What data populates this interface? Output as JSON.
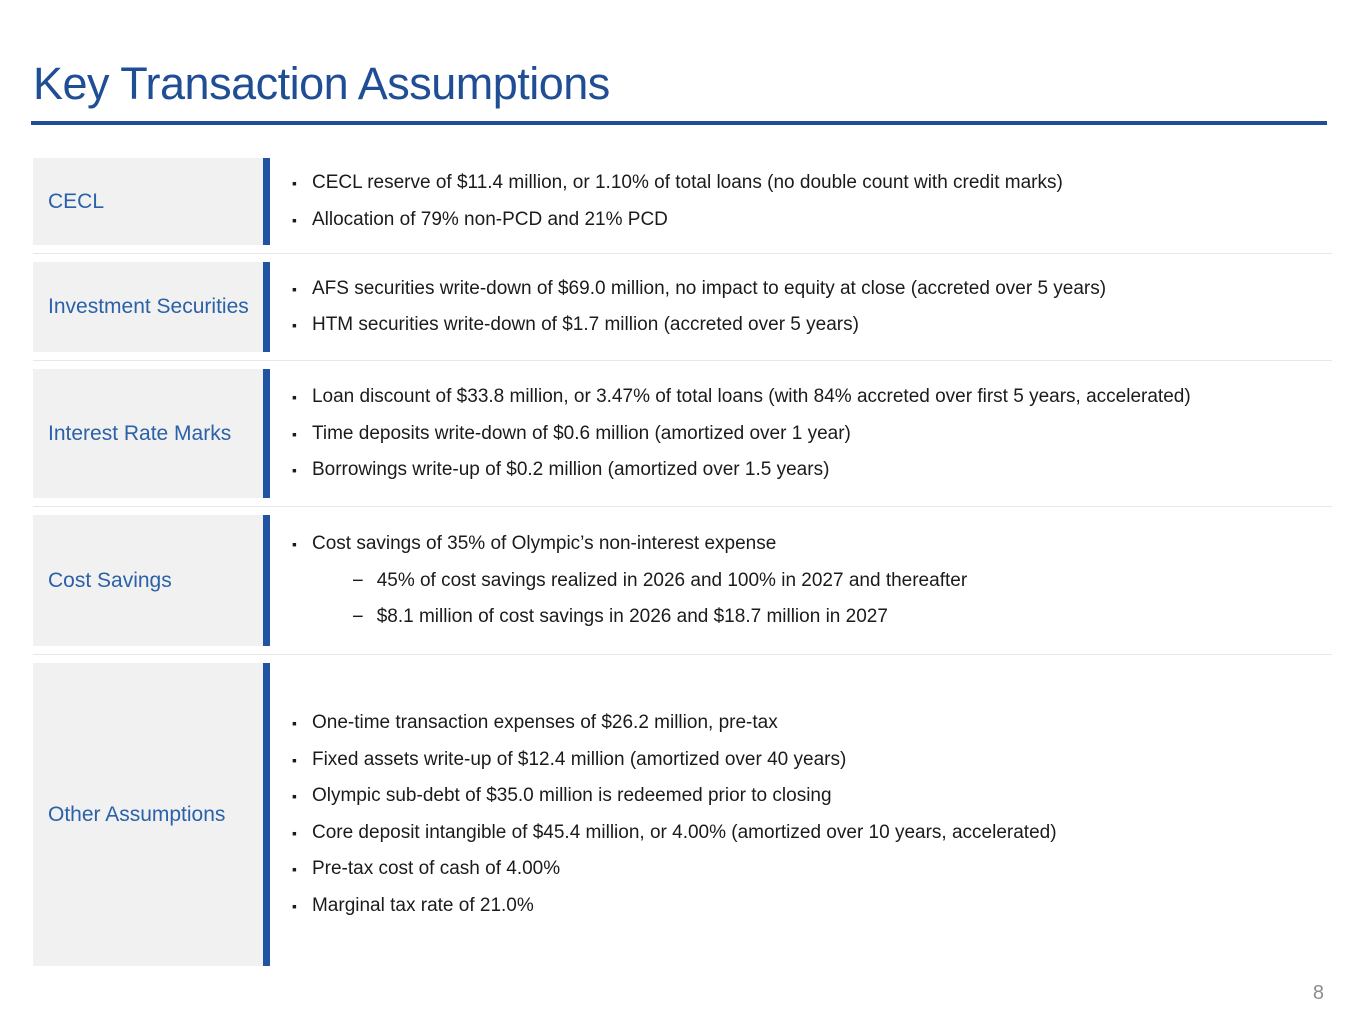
{
  "slide": {
    "title": "Key Transaction Assumptions",
    "page_number": "8",
    "icons": {
      "bullet": "▪",
      "dash": "−"
    },
    "colors": {
      "title_blue": "#1F4E94",
      "label_blue": "#2A61A8",
      "bar_blue": "#2054A3",
      "cell_gray": "#F1F1F1",
      "separator_gray": "#E8E8E8",
      "body_text": "#1B1B1B",
      "page_number_gray": "#8C8C8C"
    },
    "rows": [
      {
        "label": "CECL",
        "items": [
          {
            "level": 1,
            "text": "CECL reserve of $11.4 million, or 1.10% of total loans (no double count with credit marks)"
          },
          {
            "level": 1,
            "text": "Allocation of 79% non-PCD and 21% PCD"
          }
        ]
      },
      {
        "label": "Investment Securities",
        "items": [
          {
            "level": 1,
            "text": "AFS securities write-down of $69.0 million, no impact to equity at close (accreted over 5 years)"
          },
          {
            "level": 1,
            "text": "HTM securities write-down of $1.7 million (accreted over 5 years)"
          }
        ]
      },
      {
        "label": "Interest Rate Marks",
        "items": [
          {
            "level": 1,
            "text": "Loan discount of $33.8 million, or 3.47% of total loans (with 84% accreted over first 5 years, accelerated)"
          },
          {
            "level": 1,
            "text": "Time deposits write-down of $0.6 million (amortized over 1 year)"
          },
          {
            "level": 1,
            "text": "Borrowings write-up of $0.2 million (amortized over 1.5 years)"
          }
        ]
      },
      {
        "label": "Cost Savings",
        "items": [
          {
            "level": 1,
            "text": "Cost savings of 35% of Olympic’s non-interest expense"
          },
          {
            "level": 2,
            "text": "45% of cost savings realized in 2026 and 100% in 2027 and thereafter"
          },
          {
            "level": 2,
            "text": "$8.1 million of cost savings in 2026 and $18.7 million in 2027"
          }
        ]
      },
      {
        "label": "Other Assumptions",
        "items": [
          {
            "level": 1,
            "text": "One-time transaction expenses of $26.2 million, pre-tax"
          },
          {
            "level": 1,
            "text": "Fixed assets write-up of $12.4 million (amortized over 40 years)"
          },
          {
            "level": 1,
            "text": "Olympic sub-debt of $35.0 million is redeemed prior to closing"
          },
          {
            "level": 1,
            "text": "Core deposit intangible of $45.4 million, or 4.00% (amortized over 10 years, accelerated)"
          },
          {
            "level": 1,
            "text": "Pre-tax cost of cash of 4.00%"
          },
          {
            "level": 1,
            "text": "Marginal tax rate of 21.0%"
          }
        ]
      }
    ]
  }
}
